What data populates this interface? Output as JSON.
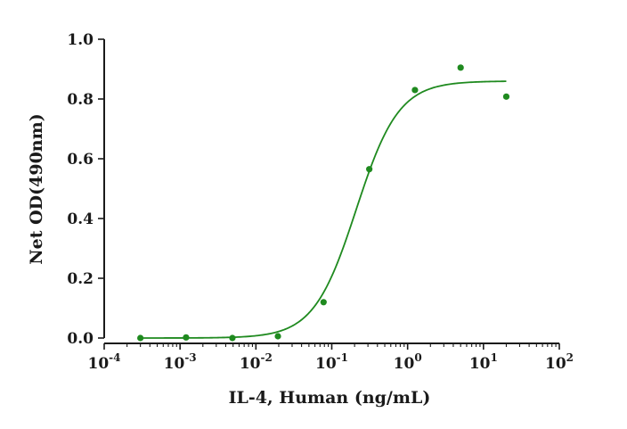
{
  "chart_data": {
    "type": "scatter",
    "title": "",
    "xlabel": "IL-4, Human (ng/mL)",
    "ylabel": "Net OD(490nm)",
    "x_scale": "log",
    "xlim": [
      0.0001,
      100
    ],
    "ylim": [
      0.0,
      1.0
    ],
    "x_ticks": [
      {
        "base": "10",
        "exp": "-4"
      },
      {
        "base": "10",
        "exp": "-3"
      },
      {
        "base": "10",
        "exp": "-2"
      },
      {
        "base": "10",
        "exp": "-1"
      },
      {
        "base": "10",
        "exp": "0"
      },
      {
        "base": "10",
        "exp": "1"
      },
      {
        "base": "10",
        "exp": "2"
      }
    ],
    "y_ticks": [
      "0.0",
      "0.2",
      "0.4",
      "0.6",
      "0.8",
      "1.0"
    ],
    "grid": false,
    "color": "#1f8a1f",
    "series": [
      {
        "points": [
          {
            "x": 0.0003,
            "y": 0.0
          },
          {
            "x": 0.0012,
            "y": 0.002
          },
          {
            "x": 0.0049,
            "y": 0.0
          },
          {
            "x": 0.0195,
            "y": 0.006
          },
          {
            "x": 0.078,
            "y": 0.12
          },
          {
            "x": 0.3125,
            "y": 0.565
          },
          {
            "x": 1.25,
            "y": 0.83
          },
          {
            "x": 5,
            "y": 0.905
          },
          {
            "x": 20,
            "y": 0.808
          }
        ],
        "fit": {
          "model": "4PL",
          "bottom": 0.0,
          "top": 0.86,
          "ec50": 0.21,
          "hill": 1.55,
          "x_range": [
            0.0003,
            20
          ]
        }
      }
    ]
  }
}
